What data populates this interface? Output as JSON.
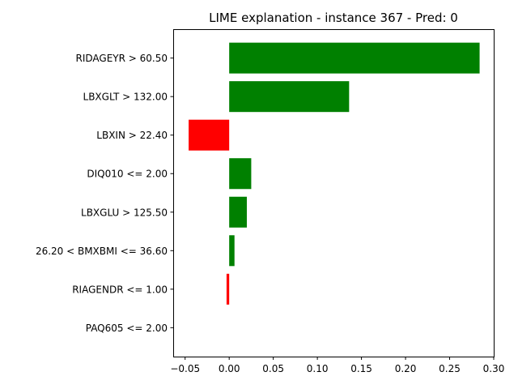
{
  "chart_data": {
    "type": "bar",
    "orientation": "horizontal",
    "title": "LIME explanation - instance 367 - Pred: 0",
    "xlabel": "",
    "ylabel": "",
    "categories": [
      "RIDAGEYR > 60.50",
      "LBXGLT > 132.00",
      "LBXIN > 22.40",
      "DIQ010 <= 2.00",
      "LBXGLU > 125.50",
      "26.20 < BMXBMI <= 36.60",
      "RIAGENDR <= 1.00",
      "PAQ605 <= 2.00"
    ],
    "values": [
      0.284,
      0.136,
      -0.046,
      0.025,
      0.02,
      0.006,
      -0.003,
      0.0
    ],
    "xlim": [
      -0.0635,
      0.3
    ],
    "xticks": [
      -0.05,
      0.0,
      0.05,
      0.1,
      0.15,
      0.2,
      0.25,
      0.3
    ],
    "xtick_labels": [
      "−0.05",
      "0.00",
      "0.05",
      "0.10",
      "0.15",
      "0.20",
      "0.25",
      "0.30"
    ],
    "grid": false,
    "colors": {
      "positive": "#008000",
      "negative": "#ff0000"
    }
  }
}
